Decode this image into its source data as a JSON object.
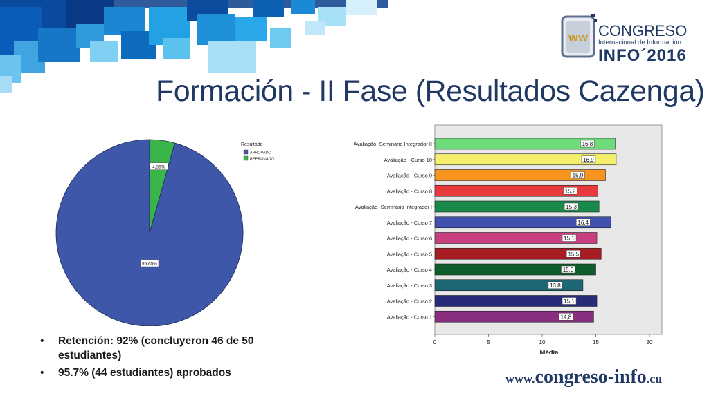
{
  "slide": {
    "title": "Formación - II Fase (Resultados Cazenga)",
    "bullets": [
      "Retención: 92% (concluyeron 46 de 50 estudiantes)",
      "95.7%  (44 estudiantes) aprobados"
    ],
    "website": {
      "prefix": "www.",
      "main": "congreso-info",
      "suffix": ".cu"
    }
  },
  "logo": {
    "monogram": "WW",
    "line1": "CONGRESO",
    "line2": "Internacional de Información",
    "line3": "INFO´2016"
  },
  "colors": {
    "title": "#1f3864",
    "pie_aprovado": "#3f57a9",
    "pie_reprovado": "#39b54a",
    "plot_bg": "#e8e8e8"
  },
  "chart_data": [
    {
      "type": "pie",
      "legend_title": "Resultado",
      "legend_placement": "top-right",
      "slices": [
        {
          "name": "APROVADO",
          "value": 95.65,
          "label": "95,65%",
          "color": "#3f57a9"
        },
        {
          "name": "REPROVADO",
          "value": 4.35,
          "label": "4,35%",
          "color": "#39b54a"
        }
      ]
    },
    {
      "type": "bar",
      "orientation": "horizontal",
      "xlabel": "Média",
      "xlim": [
        0,
        20
      ],
      "xticks": [
        0,
        5,
        10,
        15,
        20
      ],
      "grid": false,
      "categories": [
        "Avaliação -Seminário Integrador II",
        "Avaliação - Curso 10",
        "Avaliação - Curso 9",
        "Avaliação - Curso 8",
        "Avaliação -Seminário Integrador I",
        "Avaliação - Curso 7",
        "Avaliação - Curso 6",
        "Avaliação - Curso 5",
        "Avaliação - Curso 4",
        "Avaliação - Curso 3",
        "Avaliação - Curso 2",
        "Avaliação - Curso 1"
      ],
      "values": [
        16.8,
        16.9,
        15.9,
        15.2,
        15.3,
        16.4,
        15.1,
        15.5,
        15.0,
        13.8,
        15.1,
        14.8
      ],
      "value_labels": [
        "16,8",
        "16,9",
        "15,9",
        "15,2",
        "15,3",
        "16,4",
        "15,1",
        "15,5",
        "15,0",
        "13,8",
        "15,1",
        "14,8"
      ],
      "colors": [
        "#6fdc7c",
        "#f4f06e",
        "#f7941d",
        "#e8393d",
        "#1a8a4b",
        "#4151b0",
        "#c8407f",
        "#a81c24",
        "#0e5e2c",
        "#1d6675",
        "#272c7a",
        "#8a2f80"
      ]
    }
  ]
}
